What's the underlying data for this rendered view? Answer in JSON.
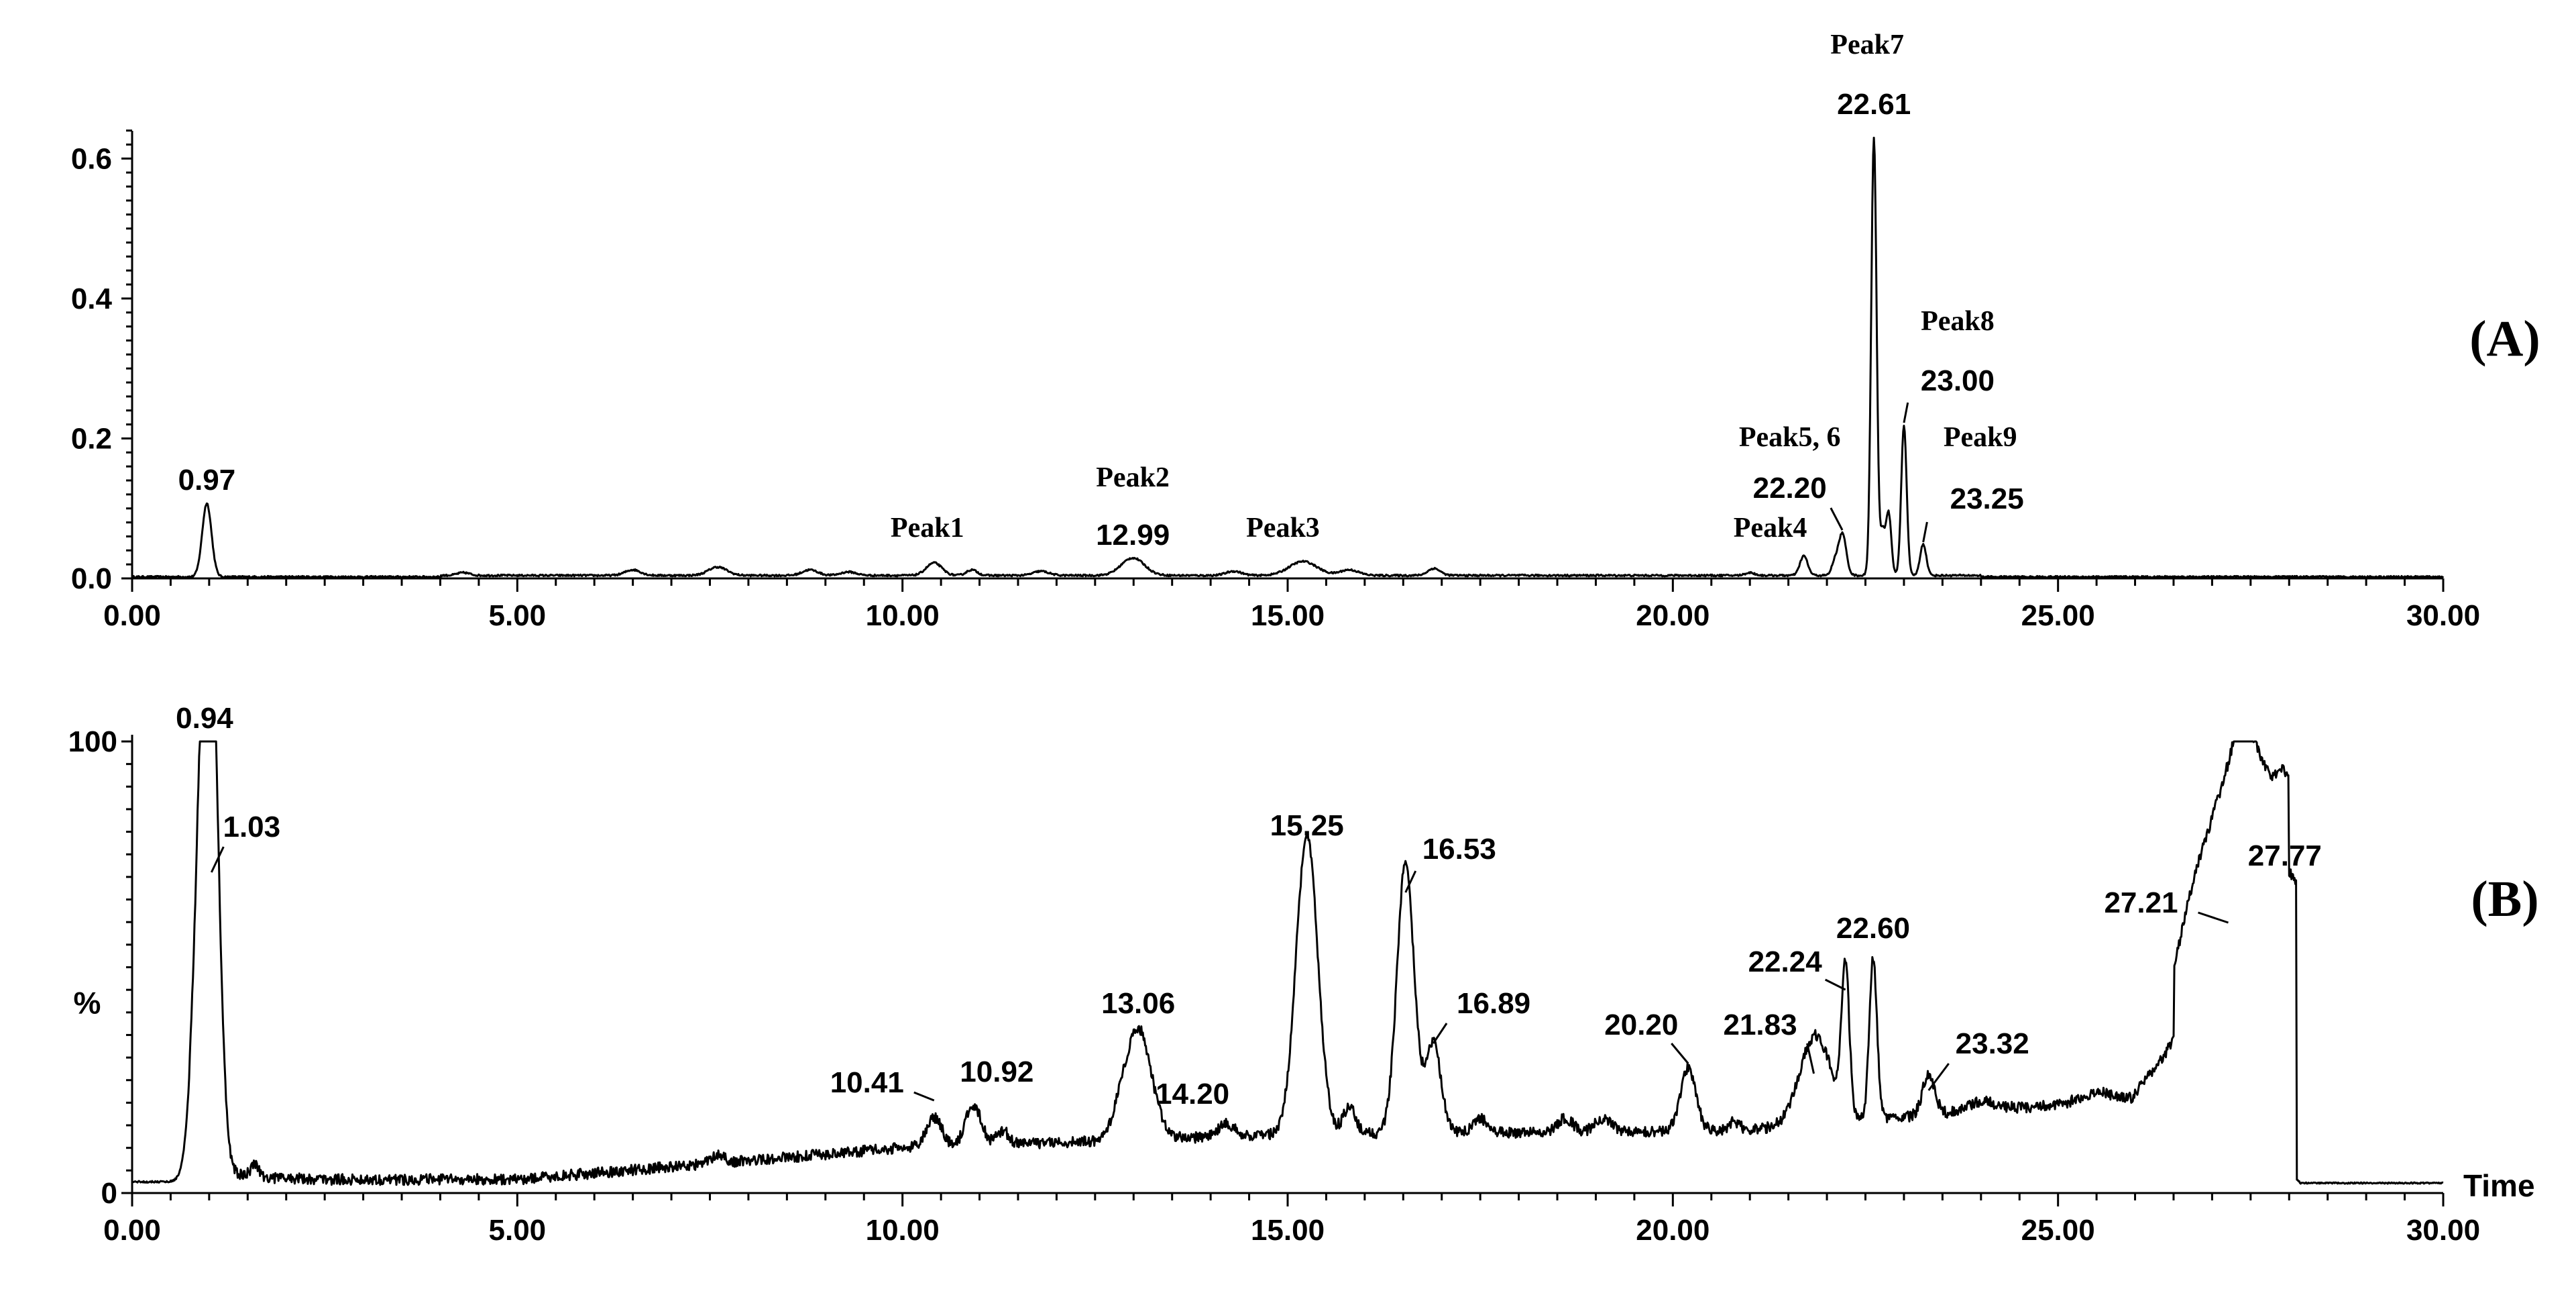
{
  "chart_data": [
    {
      "type": "line",
      "panel_label": "(A)",
      "xlim": [
        0,
        30
      ],
      "ylim": [
        0,
        0.63
      ],
      "x_ticks": [
        "0.00",
        "5.00",
        "10.00",
        "15.00",
        "20.00",
        "25.00",
        "30.00"
      ],
      "y_ticks": [
        "0.0",
        "0.2",
        "0.4",
        "0.6"
      ],
      "xlabel": "",
      "ylabel": "",
      "peaks": [
        {
          "x": 0.97,
          "y": 0.105,
          "w": 0.06,
          "label": "0.97",
          "name": ""
        },
        {
          "x": 10.41,
          "y": 0.018,
          "w": 0.1,
          "label": "",
          "name": "Peak1"
        },
        {
          "x": 12.99,
          "y": 0.025,
          "w": 0.15,
          "label": "12.99",
          "name": "Peak2"
        },
        {
          "x": 15.2,
          "y": 0.02,
          "w": 0.18,
          "label": "",
          "name": "Peak3"
        },
        {
          "x": 21.7,
          "y": 0.028,
          "w": 0.05,
          "label": "",
          "name": "Peak4"
        },
        {
          "x": 22.2,
          "y": 0.06,
          "w": 0.05,
          "label": "22.20",
          "name": "Peak5, 6"
        },
        {
          "x": 22.61,
          "y": 0.625,
          "w": 0.035,
          "label": "22.61",
          "name": "Peak7"
        },
        {
          "x": 23.0,
          "y": 0.215,
          "w": 0.035,
          "label": "23.00",
          "name": "Peak8"
        },
        {
          "x": 23.25,
          "y": 0.045,
          "w": 0.04,
          "label": "23.25",
          "name": "Peak9"
        }
      ]
    },
    {
      "type": "line",
      "panel_label": "(B)",
      "xlim": [
        0,
        30
      ],
      "ylim": [
        0,
        100
      ],
      "x_ticks": [
        "0.00",
        "5.00",
        "10.00",
        "15.00",
        "20.00",
        "25.00",
        "30.00"
      ],
      "y_ticks": [
        "0",
        "100"
      ],
      "ylabel": "%",
      "xlabel": "Time",
      "peaks": [
        {
          "x": 0.94,
          "y": 100,
          "w": 0.12,
          "label": "0.94"
        },
        {
          "x": 1.03,
          "y": 80,
          "w": 0.1,
          "label": "1.03"
        },
        {
          "x": 10.41,
          "y": 18.5,
          "w": 0.1,
          "label": "10.41"
        },
        {
          "x": 10.92,
          "y": 21,
          "w": 0.1,
          "label": "10.92"
        },
        {
          "x": 13.06,
          "y": 36.5,
          "w": 0.17,
          "label": "13.06"
        },
        {
          "x": 14.2,
          "y": 15,
          "w": 0.1,
          "label": "14.20"
        },
        {
          "x": 15.25,
          "y": 78,
          "w": 0.14,
          "label": "15.25"
        },
        {
          "x": 16.53,
          "y": 72,
          "w": 0.11,
          "label": "16.53"
        },
        {
          "x": 16.89,
          "y": 32,
          "w": 0.1,
          "label": "16.89"
        },
        {
          "x": 20.2,
          "y": 26,
          "w": 0.1,
          "label": "20.20"
        },
        {
          "x": 21.83,
          "y": 26,
          "w": 0.2,
          "label": "21.83"
        },
        {
          "x": 22.24,
          "y": 45,
          "w": 0.05,
          "label": "22.24"
        },
        {
          "x": 22.6,
          "y": 48,
          "w": 0.05,
          "label": "22.60"
        },
        {
          "x": 23.32,
          "y": 21,
          "w": 0.08,
          "label": "23.32"
        },
        {
          "x": 27.21,
          "y": 68,
          "w": 0.1,
          "label": "27.21"
        },
        {
          "x": 27.77,
          "y": 72,
          "w": 0.1,
          "label": "27.77"
        }
      ]
    }
  ]
}
